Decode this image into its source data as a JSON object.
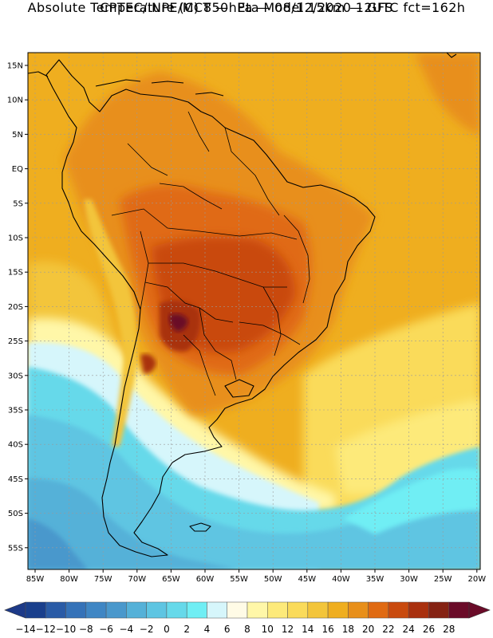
{
  "title": {
    "line1": "CPTEC/INPE/MCT —  Eta Model 15km — GFS",
    "line2": "Absolute Temperature (C) 850hPa — 08/12/2020 12UTC fct=162h"
  },
  "axes": {
    "lat_labels": [
      "15N",
      "10N",
      "5N",
      "EQ",
      "5S",
      "10S",
      "15S",
      "20S",
      "25S",
      "30S",
      "35S",
      "40S",
      "45S",
      "50S",
      "55S"
    ],
    "lon_labels": [
      "85W",
      "80W",
      "75W",
      "70W",
      "65W",
      "60W",
      "55W",
      "50W",
      "45W",
      "40W",
      "35W",
      "30W",
      "25W",
      "20W"
    ]
  },
  "colorbar": {
    "labels": [
      "-14",
      "-12",
      "-10",
      "-8",
      "-6",
      "-4",
      "-2",
      "0",
      "2",
      "4",
      "6",
      "8",
      "10",
      "12",
      "14",
      "16",
      "18",
      "20",
      "22",
      "24",
      "26",
      "28"
    ],
    "colors": [
      "#1a3f8c",
      "#2a5ba6",
      "#3572b8",
      "#3f86c4",
      "#4a98cc",
      "#55b1d8",
      "#5ec5e2",
      "#66d9ea",
      "#6feef4",
      "#d6f6fb",
      "#fffbe6",
      "#fff7a8",
      "#fdea7a",
      "#fadb5a",
      "#f3c53a",
      "#efae1f",
      "#e88f1a",
      "#e06a12",
      "#c94a0e",
      "#a9300e",
      "#852213",
      "#6a0b28"
    ]
  },
  "colors": {
    "ocean_warm": "#efae1f",
    "land_hot": "#c95d18",
    "cold_south": "#4fc7e3"
  }
}
